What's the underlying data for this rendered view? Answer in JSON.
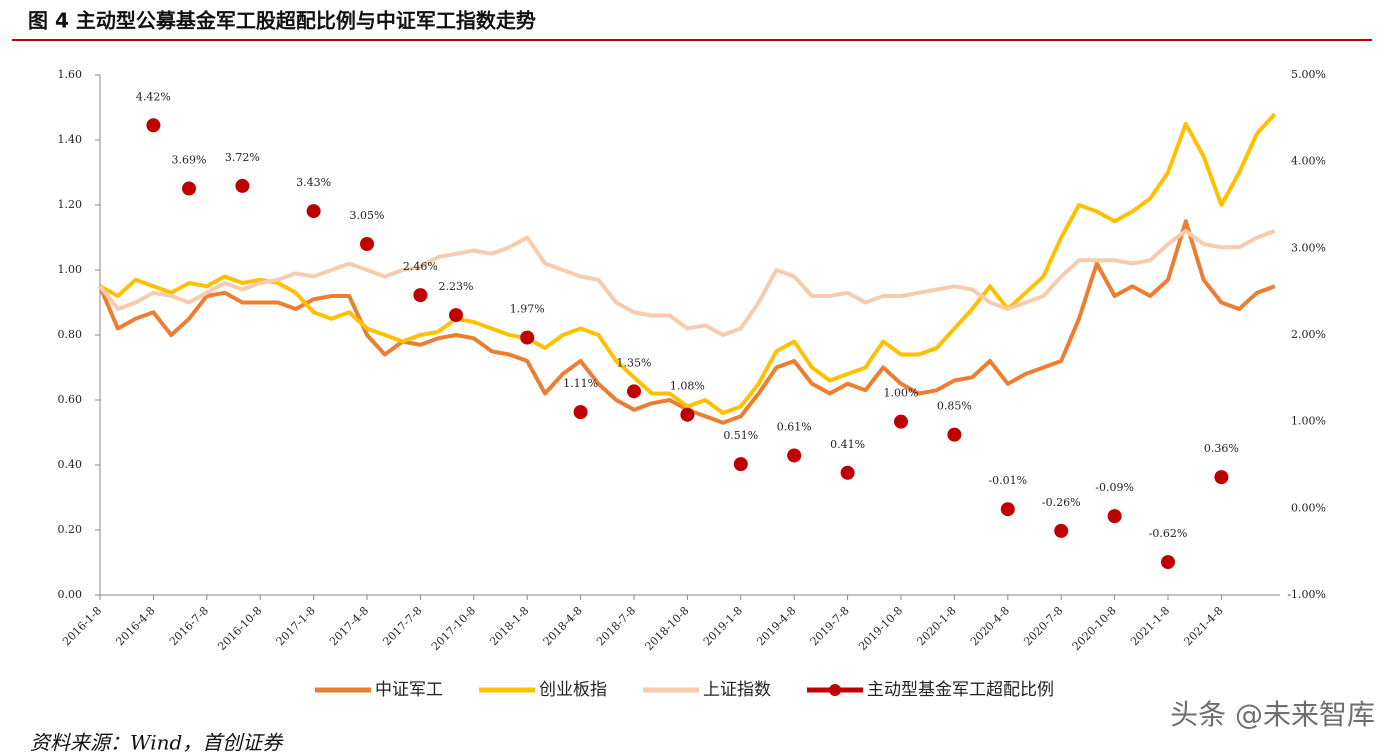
{
  "chart_data": {
    "type": "line",
    "title": "图 4 主动型公募基金军工股超配比例与中证军工指数走势",
    "source": "资料来源：Wind，首创证券",
    "watermark": "头条 @未来智库",
    "categories": [
      "2016-1-8",
      null,
      null,
      "2016-4-8",
      null,
      null,
      "2016-7-8",
      null,
      null,
      "2016-10-8",
      null,
      null,
      "2017-1-8",
      null,
      null,
      "2017-4-8",
      null,
      null,
      "2017-7-8",
      null,
      null,
      "2017-10-8",
      null,
      null,
      "2018-1-8",
      null,
      null,
      "2018-4-8",
      null,
      null,
      "2018-7-8",
      null,
      null,
      "2018-10-8",
      null,
      null,
      "2019-1-8",
      null,
      null,
      "2019-4-8",
      null,
      null,
      "2019-7-8",
      null,
      null,
      "2019-10-8",
      null,
      null,
      "2020-1-8",
      null,
      null,
      "2020-4-8",
      null,
      null,
      "2020-7-8",
      null,
      null,
      "2020-10-8",
      null,
      null,
      "2021-1-8",
      null,
      null,
      "2021-4-8",
      null,
      null,
      null
    ],
    "ylim": [
      0,
      1.6
    ],
    "yticks": [
      {
        "value": 0,
        "label": "0.00"
      },
      {
        "value": 0.2,
        "label": "0.20"
      },
      {
        "value": 0.4,
        "label": "0.40"
      },
      {
        "value": 0.6,
        "label": "0.60"
      },
      {
        "value": 0.8,
        "label": "0.80"
      },
      {
        "value": 1,
        "label": "1.00"
      },
      {
        "value": 1.2,
        "label": "1.20"
      },
      {
        "value": 1.4,
        "label": "1.40"
      },
      {
        "value": 1.6,
        "label": "1.60"
      }
    ],
    "y2lim": [
      -1,
      5
    ],
    "y2ticks": [
      {
        "value": -1,
        "label": "-1.00%"
      },
      {
        "value": 0,
        "label": "0.00%"
      },
      {
        "value": 1,
        "label": "1.00%"
      },
      {
        "value": 2,
        "label": "2.00%"
      },
      {
        "value": 3,
        "label": "3.00%"
      },
      {
        "value": 4,
        "label": "4.00%"
      },
      {
        "value": 5,
        "label": "5.00%"
      }
    ],
    "series": [
      {
        "name": "中证军工",
        "color": "#ed7d31",
        "values": [
          0.95,
          0.82,
          0.85,
          0.87,
          0.8,
          0.85,
          0.92,
          0.93,
          0.9,
          0.9,
          0.9,
          0.88,
          0.91,
          0.92,
          0.92,
          0.8,
          0.74,
          0.78,
          0.77,
          0.79,
          0.8,
          0.79,
          0.75,
          0.74,
          0.72,
          0.62,
          0.68,
          0.72,
          0.65,
          0.6,
          0.57,
          0.59,
          0.6,
          0.57,
          0.55,
          0.53,
          0.55,
          0.62,
          0.7,
          0.72,
          0.65,
          0.62,
          0.65,
          0.63,
          0.7,
          0.65,
          0.62,
          0.63,
          0.66,
          0.67,
          0.72,
          0.65,
          0.68,
          0.7,
          0.72,
          0.85,
          1.02,
          0.92,
          0.95,
          0.92,
          0.97,
          1.15,
          0.97,
          0.9,
          0.88,
          0.93,
          0.95
        ]
      },
      {
        "name": "创业板指",
        "color": "#ffc000",
        "values": [
          0.95,
          0.92,
          0.97,
          0.95,
          0.93,
          0.96,
          0.95,
          0.98,
          0.96,
          0.97,
          0.96,
          0.93,
          0.87,
          0.85,
          0.87,
          0.82,
          0.8,
          0.78,
          0.8,
          0.81,
          0.85,
          0.84,
          0.82,
          0.8,
          0.79,
          0.76,
          0.8,
          0.82,
          0.8,
          0.72,
          0.67,
          0.62,
          0.62,
          0.58,
          0.6,
          0.56,
          0.58,
          0.65,
          0.75,
          0.78,
          0.7,
          0.66,
          0.68,
          0.7,
          0.78,
          0.74,
          0.74,
          0.76,
          0.82,
          0.88,
          0.95,
          0.88,
          0.93,
          0.98,
          1.1,
          1.2,
          1.18,
          1.15,
          1.18,
          1.22,
          1.3,
          1.45,
          1.35,
          1.2,
          1.3,
          1.42,
          1.48
        ]
      },
      {
        "name": "上证指数",
        "color": "#f8cbad",
        "values": [
          0.95,
          0.88,
          0.9,
          0.93,
          0.92,
          0.9,
          0.93,
          0.96,
          0.94,
          0.96,
          0.97,
          0.99,
          0.98,
          1.0,
          1.02,
          1.0,
          0.98,
          1.0,
          1.01,
          1.04,
          1.05,
          1.06,
          1.05,
          1.07,
          1.1,
          1.02,
          1.0,
          0.98,
          0.97,
          0.9,
          0.87,
          0.86,
          0.86,
          0.82,
          0.83,
          0.8,
          0.82,
          0.9,
          1.0,
          0.98,
          0.92,
          0.92,
          0.93,
          0.9,
          0.92,
          0.92,
          0.93,
          0.94,
          0.95,
          0.94,
          0.9,
          0.88,
          0.9,
          0.92,
          0.98,
          1.03,
          1.03,
          1.03,
          1.02,
          1.03,
          1.08,
          1.12,
          1.08,
          1.07,
          1.07,
          1.1,
          1.12
        ]
      },
      {
        "name": "主动型基金军工超配比例",
        "color": "#c00000",
        "type": "scatter",
        "axis": "y2",
        "values": [
          null,
          null,
          null,
          4.42,
          null,
          3.69,
          null,
          null,
          3.72,
          null,
          null,
          null,
          3.43,
          null,
          null,
          3.05,
          null,
          null,
          2.46,
          null,
          2.23,
          null,
          null,
          null,
          1.97,
          null,
          null,
          1.11,
          null,
          null,
          1.35,
          null,
          null,
          1.08,
          null,
          null,
          0.51,
          null,
          null,
          0.61,
          null,
          null,
          0.41,
          null,
          null,
          1.0,
          null,
          null,
          0.85,
          null,
          null,
          -0.01,
          null,
          null,
          -0.26,
          null,
          null,
          -0.09,
          null,
          null,
          -0.62,
          null,
          null,
          0.36,
          null,
          null,
          null
        ],
        "value_labels": [
          null,
          null,
          null,
          "4.42%",
          null,
          "3.69%",
          null,
          null,
          "3.72%",
          null,
          null,
          null,
          "3.43%",
          null,
          null,
          "3.05%",
          null,
          null,
          "2.46%",
          null,
          "2.23%",
          null,
          null,
          null,
          "1.97%",
          null,
          null,
          "1.11%",
          null,
          null,
          "1.35%",
          null,
          null,
          "1.08%",
          null,
          null,
          "0.51%",
          null,
          null,
          "0.61%",
          null,
          null,
          "0.41%",
          null,
          null,
          "1.00%",
          null,
          null,
          "0.85%",
          null,
          null,
          "-0.01%",
          null,
          null,
          "-0.26%",
          null,
          null,
          "-0.09%",
          null,
          null,
          "-0.62%",
          null,
          null,
          "0.36%",
          null,
          null,
          null
        ]
      }
    ]
  }
}
